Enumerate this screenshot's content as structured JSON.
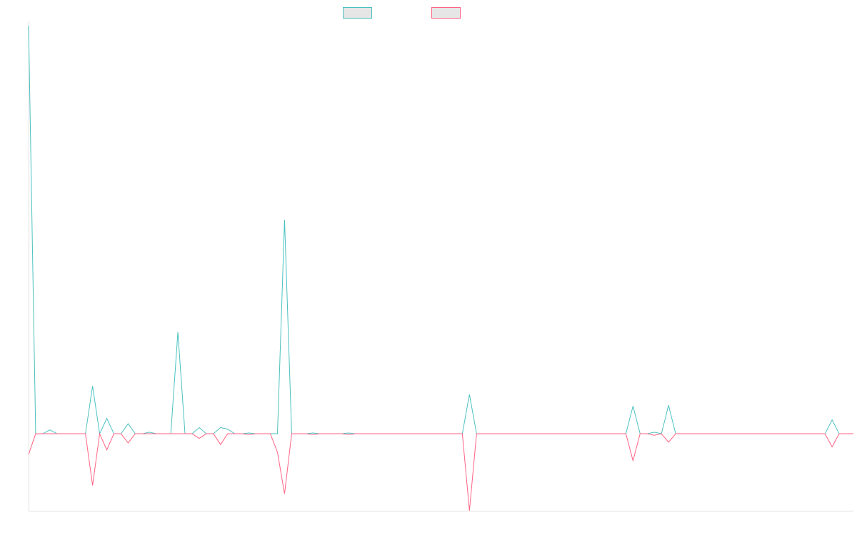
{
  "chart_data": {
    "type": "line",
    "title": "",
    "xlabel": "",
    "ylabel": "",
    "grid": false,
    "legend_placement": "top-center",
    "x_count": 117,
    "ylim": [
      -1.0,
      5.3
    ],
    "colors": [
      "#4bc0c0",
      "#ff6384"
    ],
    "series": [
      {
        "name": "",
        "color": "#4bc0c0",
        "points": [
          [
            0,
            5.3
          ],
          [
            1,
            0
          ],
          [
            2,
            0
          ],
          [
            3,
            0.05
          ],
          [
            4,
            0
          ],
          [
            8,
            0
          ],
          [
            9,
            0.62
          ],
          [
            10,
            0
          ],
          [
            11,
            0.2
          ],
          [
            12,
            0
          ],
          [
            13,
            0
          ],
          [
            14,
            0.13
          ],
          [
            15,
            0
          ],
          [
            16,
            0
          ],
          [
            17,
            0.02
          ],
          [
            18,
            0
          ],
          [
            19,
            0
          ],
          [
            20,
            0
          ],
          [
            21,
            1.32
          ],
          [
            22,
            0
          ],
          [
            23,
            0
          ],
          [
            24,
            0.08
          ],
          [
            25,
            0
          ],
          [
            26,
            0
          ],
          [
            27,
            0.08
          ],
          [
            28,
            0.06
          ],
          [
            29,
            0
          ],
          [
            30,
            0
          ],
          [
            31,
            0.01
          ],
          [
            32,
            0
          ],
          [
            33,
            0
          ],
          [
            34,
            0
          ],
          [
            35,
            0
          ],
          [
            36,
            2.78
          ],
          [
            37,
            0
          ],
          [
            38,
            0
          ],
          [
            39,
            0
          ],
          [
            40,
            0.01
          ],
          [
            41,
            0
          ],
          [
            42,
            0
          ],
          [
            43,
            0
          ],
          [
            44,
            0
          ],
          [
            45,
            0.01
          ],
          [
            46,
            0
          ],
          [
            61,
            0
          ],
          [
            62,
            0.51
          ],
          [
            63,
            0
          ],
          [
            84,
            0
          ],
          [
            85,
            0.36
          ],
          [
            86,
            0
          ],
          [
            87,
            0
          ],
          [
            88,
            0.02
          ],
          [
            89,
            0
          ],
          [
            90,
            0.37
          ],
          [
            91,
            0
          ],
          [
            112,
            0
          ],
          [
            113,
            0.18
          ],
          [
            114,
            0
          ],
          [
            115,
            0
          ],
          [
            116,
            0
          ]
        ]
      },
      {
        "name": "",
        "color": "#ff6384",
        "points": [
          [
            0,
            -0.27
          ],
          [
            1,
            0
          ],
          [
            8,
            0
          ],
          [
            9,
            -0.67
          ],
          [
            10,
            0
          ],
          [
            11,
            -0.21
          ],
          [
            12,
            0
          ],
          [
            13,
            0
          ],
          [
            14,
            -0.12
          ],
          [
            15,
            0
          ],
          [
            16,
            0
          ],
          [
            17,
            0
          ],
          [
            23,
            0
          ],
          [
            24,
            -0.06
          ],
          [
            25,
            0
          ],
          [
            26,
            0
          ],
          [
            27,
            -0.14
          ],
          [
            28,
            0
          ],
          [
            29,
            0
          ],
          [
            30,
            0
          ],
          [
            31,
            -0.01
          ],
          [
            32,
            0
          ],
          [
            33,
            0
          ],
          [
            34,
            0
          ],
          [
            35,
            -0.24
          ],
          [
            36,
            -0.78
          ],
          [
            37,
            0
          ],
          [
            39,
            0
          ],
          [
            40,
            -0.01
          ],
          [
            41,
            0
          ],
          [
            44,
            0
          ],
          [
            45,
            -0.01
          ],
          [
            46,
            0
          ],
          [
            61,
            0
          ],
          [
            62,
            -1.0
          ],
          [
            63,
            0
          ],
          [
            84,
            0
          ],
          [
            85,
            -0.35
          ],
          [
            86,
            0
          ],
          [
            87,
            0
          ],
          [
            88,
            -0.02
          ],
          [
            89,
            0
          ],
          [
            90,
            -0.11
          ],
          [
            91,
            0
          ],
          [
            112,
            0
          ],
          [
            113,
            -0.17
          ],
          [
            114,
            0
          ],
          [
            115,
            0
          ],
          [
            116,
            0
          ]
        ]
      }
    ]
  }
}
